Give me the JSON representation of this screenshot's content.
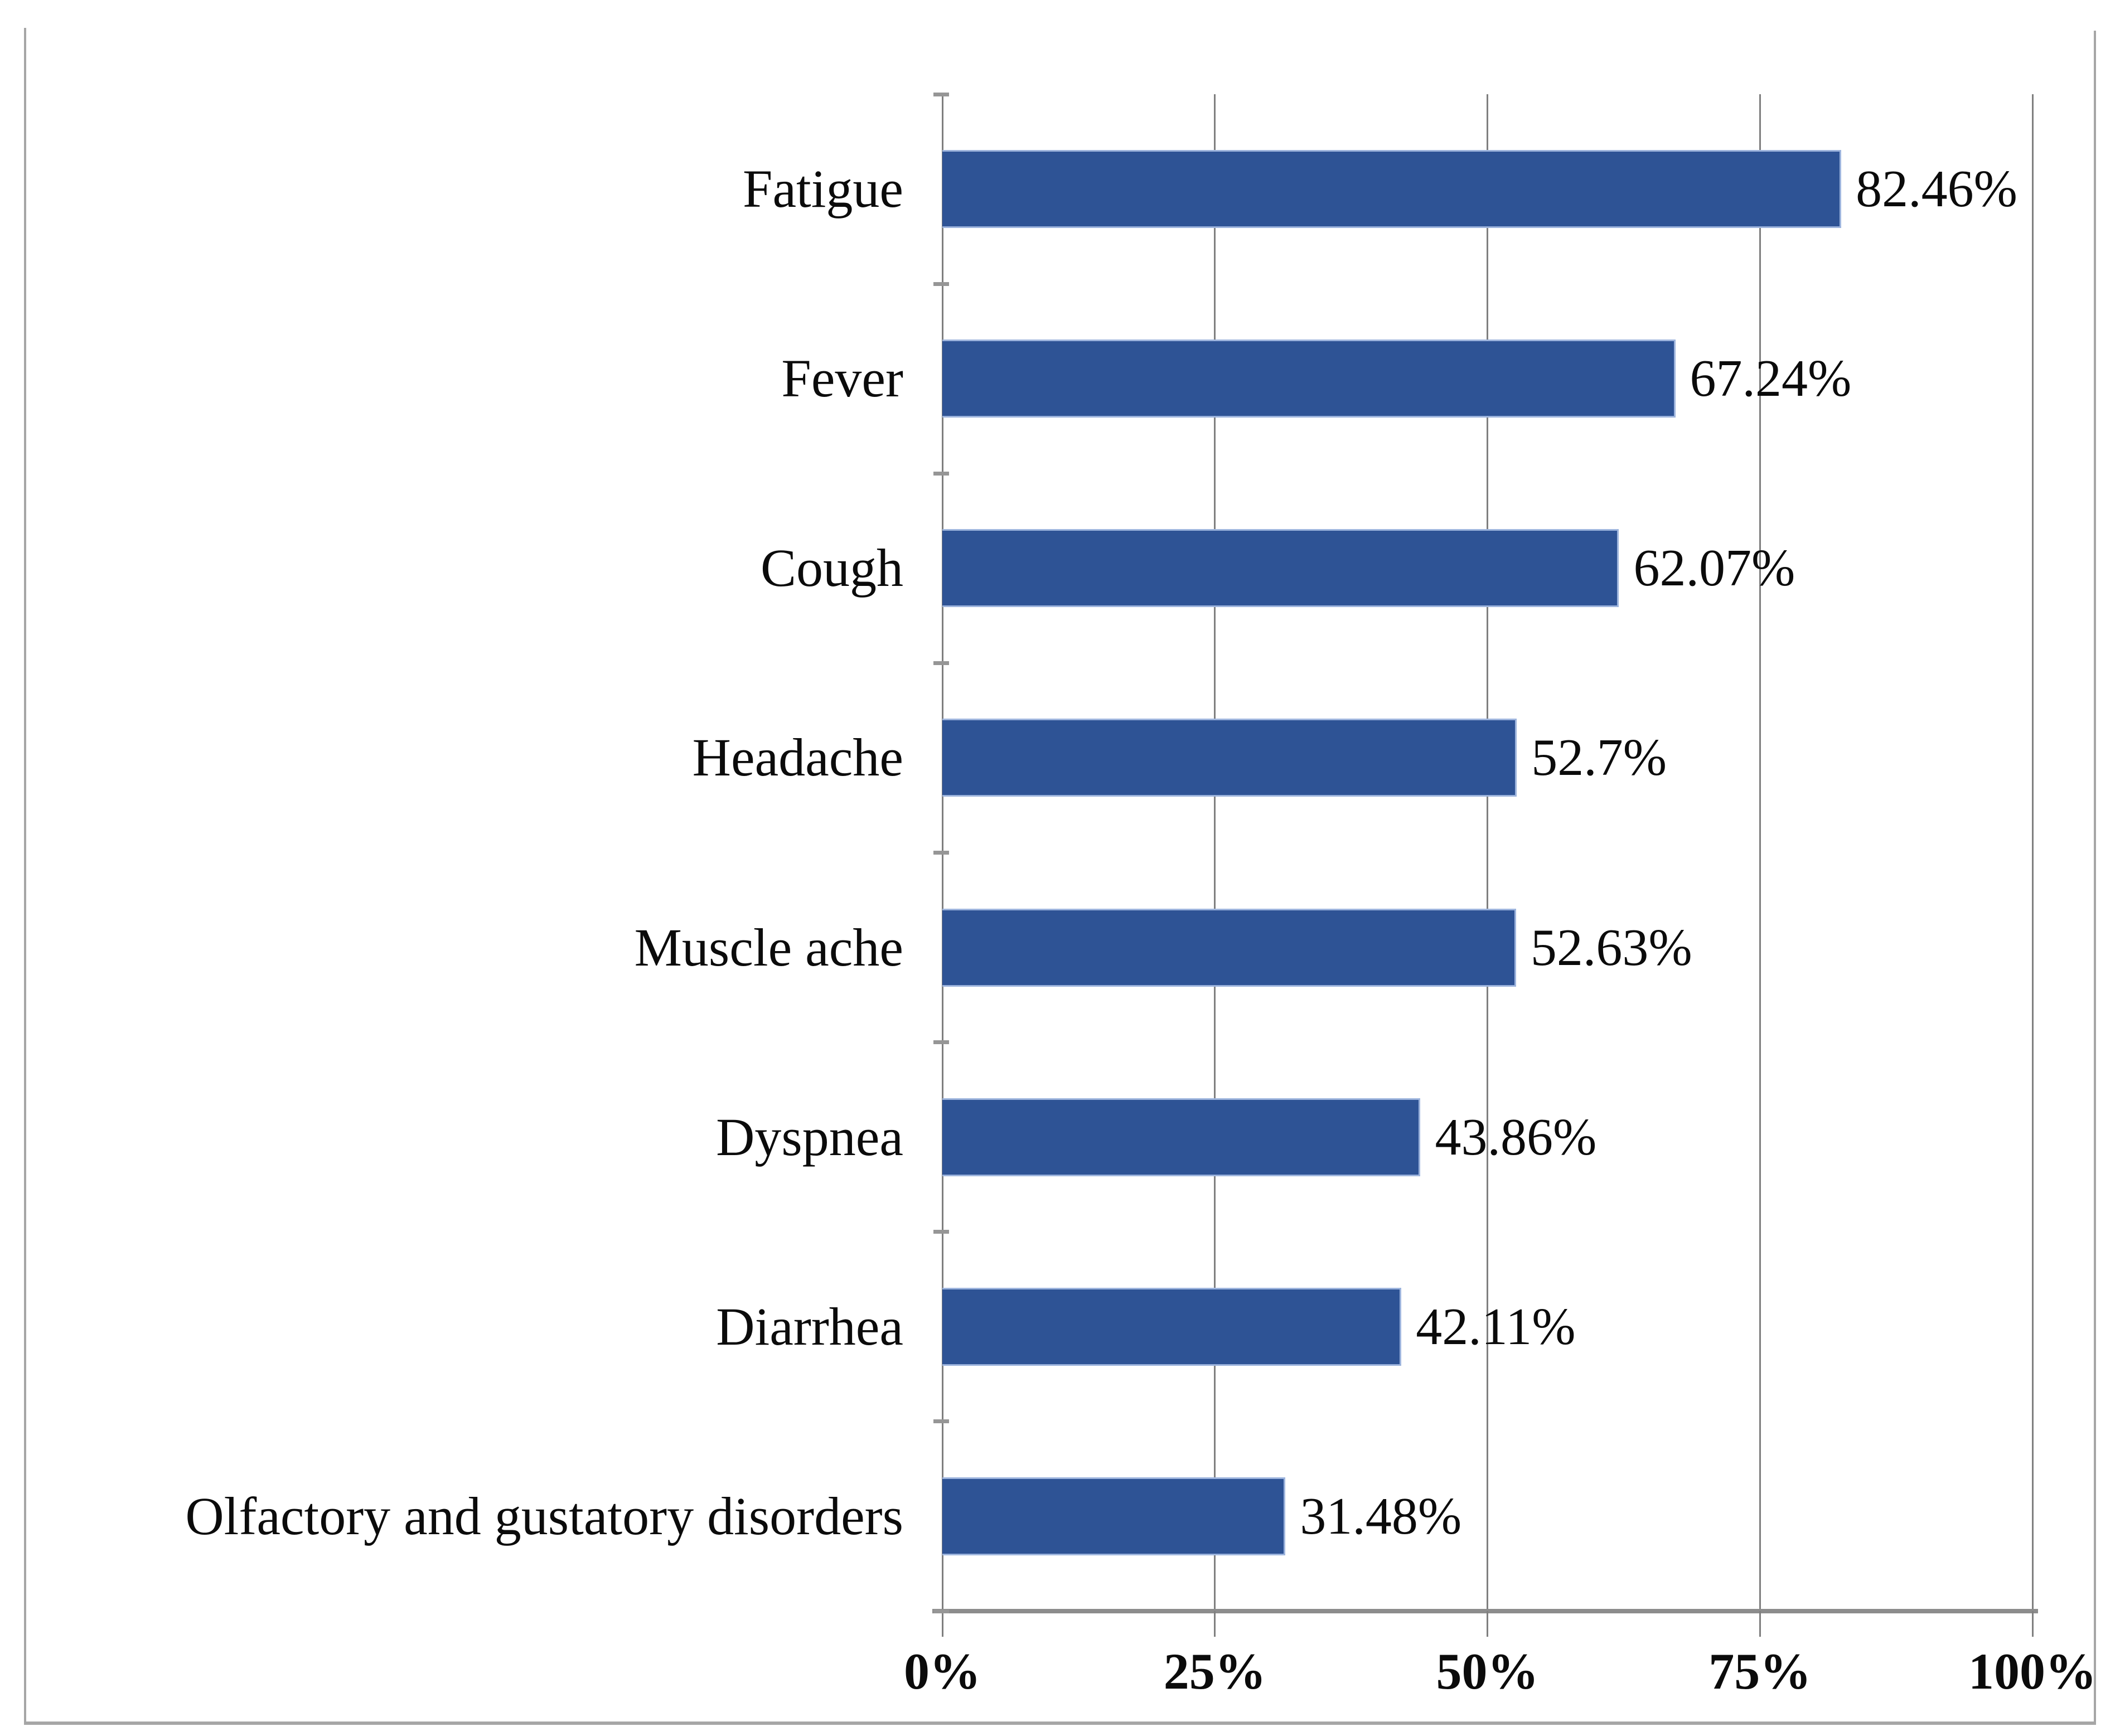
{
  "figure": {
    "background": "#ffffff",
    "frame_color": "#a6a6a6"
  },
  "chart_data": {
    "type": "bar",
    "orientation": "horizontal",
    "title": "",
    "xlabel": "",
    "ylabel": "",
    "categories": [
      "Fatigue",
      "Fever",
      "Cough",
      "Headache",
      "Muscle ache",
      "Dyspnea",
      "Diarrhea",
      "Olfactory and gustatory disorders"
    ],
    "values": [
      82.46,
      67.24,
      62.07,
      52.7,
      52.63,
      43.86,
      42.11,
      31.48
    ],
    "value_labels": [
      "82.46%",
      "67.24%",
      "62.07%",
      "52.7%",
      "52.63%",
      "43.86%",
      "42.11%",
      "31.48%"
    ],
    "x_axis": {
      "min": 0,
      "max": 100,
      "tick_values": [
        0,
        25,
        50,
        75,
        100
      ],
      "tick_labels": [
        "0%",
        "25%",
        "50%",
        "75%",
        "100%"
      ]
    },
    "grid": "vertical-gridlines-on",
    "legend": "none",
    "bar_color": "#2e5395",
    "bar_edge_color": "#9db4dd",
    "gridline_color": "#7f7f7f",
    "axis_line_color": "#8c8c8c",
    "text_color": "#0b0b0b"
  }
}
